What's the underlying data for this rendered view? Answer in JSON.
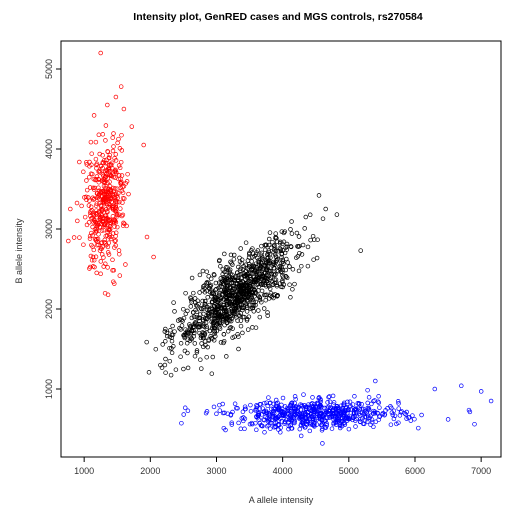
{
  "chart_data": {
    "type": "scatter",
    "title": "Intensity plot, GenRED cases and MGS controls, rs270584",
    "xlabel": "A allele intensity",
    "ylabel": "B allele intensity",
    "xlim": [
      650,
      7300
    ],
    "ylim": [
      150,
      5350
    ],
    "x_ticks": [
      1000,
      2000,
      3000,
      4000,
      5000,
      6000,
      7000
    ],
    "x_tick_labels": [
      "1000",
      "2000",
      "3000",
      "4000",
      "5000",
      "6000",
      "7000"
    ],
    "y_ticks": [
      1000,
      2000,
      3000,
      4000,
      5000
    ],
    "y_tick_labels": [
      "1000",
      "2000",
      "3000",
      "4000",
      "5000"
    ],
    "marker": "open-circle",
    "grid": false,
    "clusters": [
      {
        "color": "#ff0000",
        "count": 430,
        "center": [
          1320,
          3300
        ],
        "spread": [
          150,
          380
        ],
        "correlation": 0.1,
        "outliers": [
          [
            1250,
            5200
          ],
          [
            1560,
            4780
          ],
          [
            1480,
            4650
          ],
          [
            1150,
            4420
          ],
          [
            1720,
            4280
          ],
          [
            1900,
            4050
          ],
          [
            790,
            3250
          ],
          [
            760,
            2850
          ],
          [
            2050,
            2650
          ],
          [
            1950,
            2900
          ],
          [
            1600,
            4500
          ],
          [
            1350,
            4550
          ]
        ]
      },
      {
        "color": "#000000",
        "count": 1050,
        "center": [
          3300,
          2180
        ],
        "spread": [
          450,
          330
        ],
        "correlation": 0.78,
        "outliers": [
          [
            4550,
            3420
          ],
          [
            4820,
            3180
          ],
          [
            5180,
            2730
          ],
          [
            2220,
            1300
          ],
          [
            2500,
            1250
          ],
          [
            4350,
            3150
          ],
          [
            2250,
            1700
          ],
          [
            4650,
            3250
          ]
        ]
      },
      {
        "color": "#0000ff",
        "count": 620,
        "center": [
          4500,
          680
        ],
        "spread": [
          650,
          90
        ],
        "correlation": 0.08,
        "outliers": [
          [
            7000,
            970
          ],
          [
            7150,
            850
          ],
          [
            6700,
            1040
          ],
          [
            3050,
            730
          ],
          [
            6300,
            1000
          ],
          [
            4600,
            320
          ],
          [
            5400,
            1100
          ],
          [
            6900,
            560
          ],
          [
            3100,
            700
          ],
          [
            6500,
            620
          ]
        ]
      }
    ]
  }
}
